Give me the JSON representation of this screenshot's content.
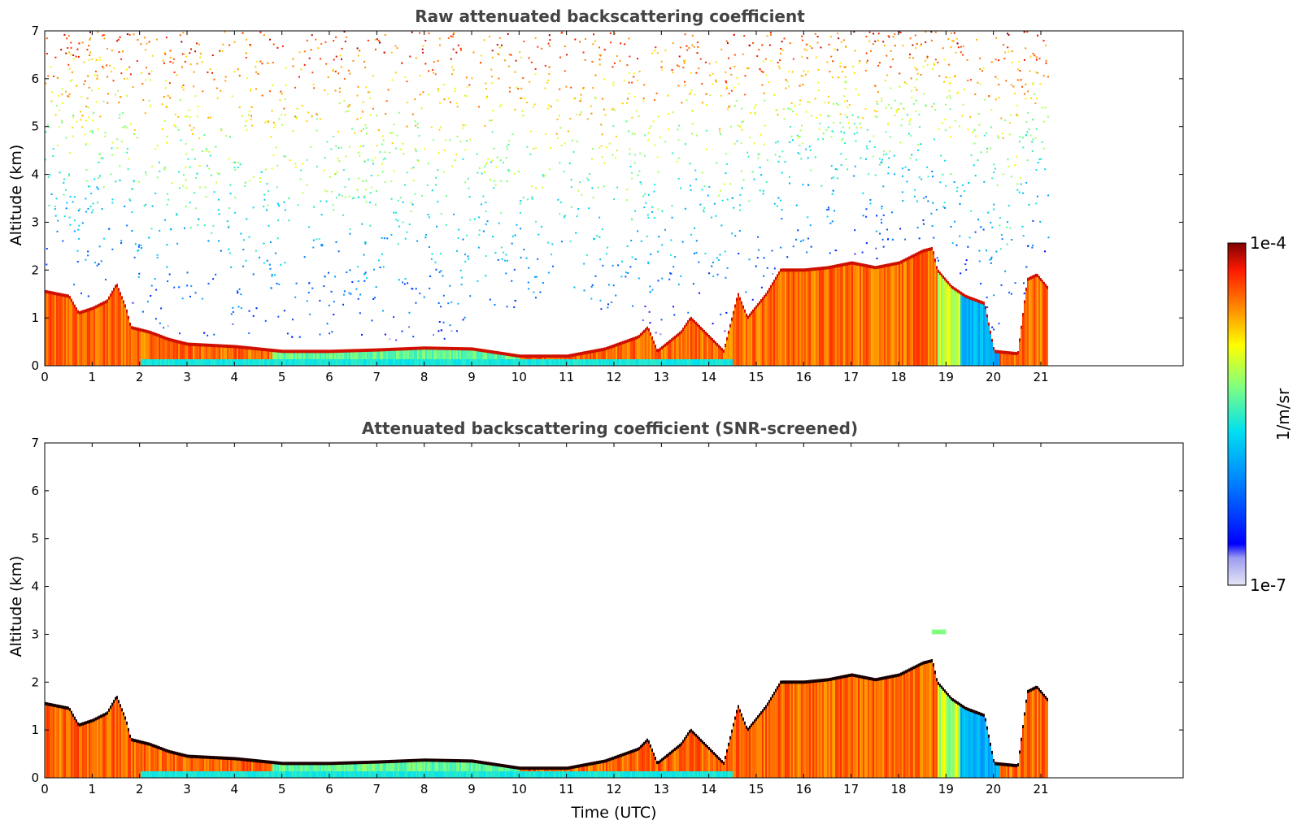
{
  "chart_data": [
    {
      "type": "heatmap",
      "title": "Raw attenuated backscattering coefficient",
      "xlabel": "",
      "ylabel": "Altitude (km)",
      "xlim": [
        0,
        24
      ],
      "ylim": [
        0,
        7
      ],
      "x_ticks": [
        0,
        1,
        2,
        3,
        4,
        5,
        6,
        7,
        8,
        9,
        10,
        11,
        12,
        13,
        14,
        15,
        16,
        17,
        18,
        19,
        20,
        21
      ],
      "y_ticks": [
        0,
        1,
        2,
        3,
        4,
        5,
        6,
        7
      ],
      "data_end_time": 21.15,
      "noise": "dense background noise above the boundary layer, increasing with altitude",
      "layer_top_km": [
        [
          0,
          1.55
        ],
        [
          0.5,
          1.45
        ],
        [
          0.7,
          1.1
        ],
        [
          1.0,
          1.2
        ],
        [
          1.3,
          1.35
        ],
        [
          1.5,
          1.7
        ],
        [
          1.7,
          1.2
        ],
        [
          1.8,
          0.8
        ],
        [
          2.2,
          0.7
        ],
        [
          2.6,
          0.55
        ],
        [
          3.0,
          0.45
        ],
        [
          4.0,
          0.4
        ],
        [
          5.0,
          0.3
        ],
        [
          6.0,
          0.3
        ],
        [
          7.0,
          0.33
        ],
        [
          8.0,
          0.37
        ],
        [
          9.0,
          0.35
        ],
        [
          10.0,
          0.2
        ],
        [
          11.0,
          0.2
        ],
        [
          11.8,
          0.35
        ],
        [
          12.5,
          0.6
        ],
        [
          12.7,
          0.8
        ],
        [
          12.9,
          0.3
        ],
        [
          13.4,
          0.7
        ],
        [
          13.6,
          1.0
        ],
        [
          14.0,
          0.6
        ],
        [
          14.3,
          0.3
        ],
        [
          14.6,
          1.5
        ],
        [
          14.8,
          1.0
        ],
        [
          15.2,
          1.5
        ],
        [
          15.5,
          2.0
        ],
        [
          16.0,
          2.0
        ],
        [
          16.5,
          2.05
        ],
        [
          17.0,
          2.15
        ],
        [
          17.5,
          2.05
        ],
        [
          18.0,
          2.15
        ],
        [
          18.5,
          2.4
        ],
        [
          18.7,
          2.45
        ],
        [
          18.8,
          2.0
        ],
        [
          19.1,
          1.65
        ],
        [
          19.4,
          1.45
        ],
        [
          19.8,
          1.3
        ],
        [
          20.0,
          0.3
        ],
        [
          20.5,
          0.25
        ],
        [
          20.7,
          1.8
        ],
        [
          20.9,
          1.9
        ],
        [
          21.15,
          1.6
        ]
      ],
      "colorbar": {
        "min_label": "1e-7",
        "max_label": "1e-4",
        "label": "1/m/sr",
        "scale": "log",
        "colormap": "jet"
      }
    },
    {
      "type": "heatmap",
      "title": "Attenuated backscattering coefficient (SNR-screened)",
      "xlabel": "Time (UTC)",
      "ylabel": "Altitude (km)",
      "xlim": [
        0,
        24
      ],
      "ylim": [
        0,
        7
      ],
      "x_ticks": [
        0,
        1,
        2,
        3,
        4,
        5,
        6,
        7,
        8,
        9,
        10,
        11,
        12,
        13,
        14,
        15,
        16,
        17,
        18,
        19,
        20,
        21
      ],
      "y_ticks": [
        0,
        1,
        2,
        3,
        4,
        5,
        6,
        7
      ],
      "data_end_time": 21.15,
      "noise": "screened (no background noise)",
      "cloud_patch": {
        "x": [
          18.7,
          19.0
        ],
        "y": [
          3.0,
          3.1
        ]
      },
      "layer_top_km": [
        [
          0,
          1.55
        ],
        [
          0.5,
          1.45
        ],
        [
          0.7,
          1.1
        ],
        [
          1.0,
          1.2
        ],
        [
          1.3,
          1.35
        ],
        [
          1.5,
          1.7
        ],
        [
          1.7,
          1.2
        ],
        [
          1.8,
          0.8
        ],
        [
          2.2,
          0.7
        ],
        [
          2.6,
          0.55
        ],
        [
          3.0,
          0.45
        ],
        [
          4.0,
          0.4
        ],
        [
          5.0,
          0.3
        ],
        [
          6.0,
          0.3
        ],
        [
          7.0,
          0.33
        ],
        [
          8.0,
          0.37
        ],
        [
          9.0,
          0.35
        ],
        [
          10.0,
          0.2
        ],
        [
          11.0,
          0.2
        ],
        [
          11.8,
          0.35
        ],
        [
          12.5,
          0.6
        ],
        [
          12.7,
          0.8
        ],
        [
          12.9,
          0.3
        ],
        [
          13.4,
          0.7
        ],
        [
          13.6,
          1.0
        ],
        [
          14.0,
          0.6
        ],
        [
          14.3,
          0.3
        ],
        [
          14.6,
          1.5
        ],
        [
          14.8,
          1.0
        ],
        [
          15.2,
          1.5
        ],
        [
          15.5,
          2.0
        ],
        [
          16.0,
          2.0
        ],
        [
          16.5,
          2.05
        ],
        [
          17.0,
          2.15
        ],
        [
          17.5,
          2.05
        ],
        [
          18.0,
          2.15
        ],
        [
          18.5,
          2.4
        ],
        [
          18.7,
          2.45
        ],
        [
          18.8,
          2.0
        ],
        [
          19.1,
          1.65
        ],
        [
          19.4,
          1.45
        ],
        [
          19.8,
          1.3
        ],
        [
          20.0,
          0.3
        ],
        [
          20.5,
          0.25
        ],
        [
          20.7,
          1.8
        ],
        [
          20.9,
          1.9
        ],
        [
          21.15,
          1.6
        ]
      ]
    }
  ],
  "colorbar": {
    "top_label": "1e-4",
    "bottom_label": "1e-7",
    "unit_label": "1/m/sr"
  }
}
